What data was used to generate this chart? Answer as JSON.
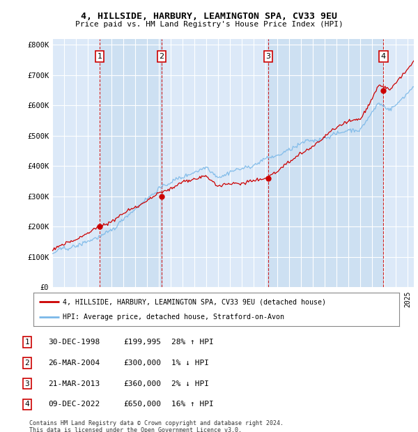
{
  "title": "4, HILLSIDE, HARBURY, LEAMINGTON SPA, CV33 9EU",
  "subtitle": "Price paid vs. HM Land Registry's House Price Index (HPI)",
  "ylim": [
    0,
    820000
  ],
  "yticks": [
    0,
    100000,
    200000,
    300000,
    400000,
    500000,
    600000,
    700000,
    800000
  ],
  "ytick_labels": [
    "£0",
    "£100K",
    "£200K",
    "£300K",
    "£400K",
    "£500K",
    "£600K",
    "£700K",
    "£800K"
  ],
  "xlim_start": 1995.0,
  "xlim_end": 2025.5,
  "bg_color": "#dce9f8",
  "grid_color": "#ffffff",
  "sale_dates": [
    1998.99,
    2004.23,
    2013.22,
    2022.94
  ],
  "sale_prices": [
    199995,
    300000,
    360000,
    650000
  ],
  "sale_labels": [
    "1",
    "2",
    "3",
    "4"
  ],
  "legend_line1": "4, HILLSIDE, HARBURY, LEAMINGTON SPA, CV33 9EU (detached house)",
  "legend_line2": "HPI: Average price, detached house, Stratford-on-Avon",
  "table_data": [
    [
      "1",
      "30-DEC-1998",
      "£199,995",
      "28% ↑ HPI"
    ],
    [
      "2",
      "26-MAR-2004",
      "£300,000",
      "1% ↓ HPI"
    ],
    [
      "3",
      "21-MAR-2013",
      "£360,000",
      "2% ↓ HPI"
    ],
    [
      "4",
      "09-DEC-2022",
      "£650,000",
      "16% ↑ HPI"
    ]
  ],
  "footer": "Contains HM Land Registry data © Crown copyright and database right 2024.\nThis data is licensed under the Open Government Licence v3.0.",
  "hpi_color": "#7ab8e8",
  "price_color": "#cc0000",
  "sale_marker_color": "#cc0000",
  "dashed_line_color": "#cc0000",
  "shade_color": "#c8ddf0"
}
